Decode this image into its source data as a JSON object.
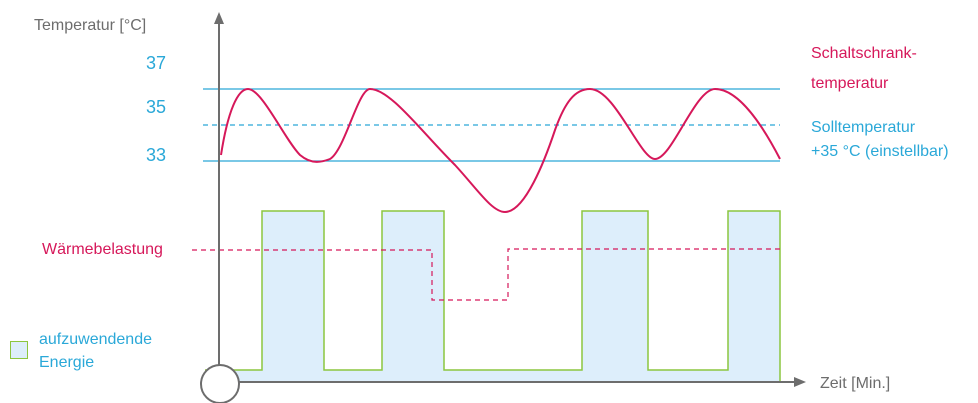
{
  "y_axis_label": "Temperatur [°C]",
  "x_axis_label": "Zeit [Min.]",
  "temperature_ticks": [
    "37",
    "35",
    "33"
  ],
  "labels": {
    "heat_load": "Wärmebelastung",
    "cabinet_temp_line1": "Schaltschrank-",
    "cabinet_temp_line2": "temperatur",
    "setpoint_line1": "Solltemperatur",
    "setpoint_line2": "+35 °C (einstellbar)",
    "energy_line1": "aufzuwendende",
    "energy_line2": "Energie"
  },
  "colors": {
    "axis": "#6d6d6d",
    "temperature_lines": "#2aa8d8",
    "cabinet_temperature": "#d6185a",
    "energy_fill": "#ddeefb",
    "energy_stroke": "#8cc63f"
  }
}
